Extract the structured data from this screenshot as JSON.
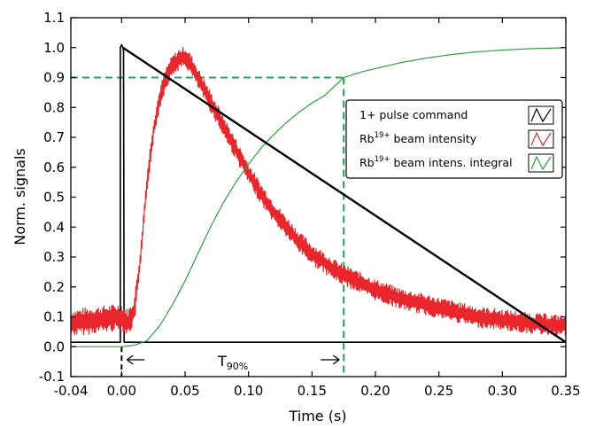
{
  "chart_data": {
    "type": "line",
    "title": "",
    "xlabel": "Time (s)",
    "ylabel": "Norm. signals",
    "xlim": [
      -0.04,
      0.35
    ],
    "ylim": [
      -0.1,
      1.1
    ],
    "x_ticks": [
      "-0.04",
      "0.00",
      "0.05",
      "0.10",
      "0.15",
      "0.20",
      "0.25",
      "0.30",
      "0.35"
    ],
    "x_tick_values": [
      -0.04,
      0.0,
      0.05,
      0.1,
      0.15,
      0.2,
      0.25,
      0.3,
      0.35
    ],
    "y_ticks": [
      "-0.1",
      "0.0",
      "0.1",
      "0.2",
      "0.3",
      "0.4",
      "0.5",
      "0.6",
      "0.7",
      "0.8",
      "0.9",
      "1.0",
      "1.1"
    ],
    "y_tick_values": [
      -0.1,
      0.0,
      0.1,
      0.2,
      0.3,
      0.4,
      0.5,
      0.6,
      0.7,
      0.8,
      0.9,
      1.0,
      1.1
    ],
    "grid": false,
    "legend_position": "right",
    "series": [
      {
        "name": "1+ pulse command",
        "color": "#000000",
        "x": [
          -0.04,
          -0.001,
          -0.001,
          0.0,
          0.001,
          0.0015,
          0.002,
          0.003,
          0.004,
          0.35
        ],
        "y": [
          0.015,
          0.015,
          1.0,
          1.01,
          1.0,
          0.99,
          0.015,
          0.015,
          0.015,
          0.015
        ]
      },
      {
        "name": "beam intensity",
        "name_prefix": "Rb",
        "name_sup": "19+",
        "name_suffix": " beam intensity",
        "color": "#e8262b",
        "x": [
          -0.04,
          -0.02,
          0.0,
          0.005,
          0.01,
          0.015,
          0.02,
          0.025,
          0.03,
          0.035,
          0.04,
          0.045,
          0.05,
          0.055,
          0.06,
          0.065,
          0.07,
          0.075,
          0.08,
          0.09,
          0.1,
          0.11,
          0.12,
          0.13,
          0.14,
          0.15,
          0.16,
          0.17,
          0.18,
          0.19,
          0.2,
          0.22,
          0.24,
          0.26,
          0.28,
          0.3,
          0.32,
          0.35
        ],
        "y": [
          0.08,
          0.09,
          0.1,
          0.08,
          0.12,
          0.3,
          0.55,
          0.72,
          0.83,
          0.9,
          0.94,
          0.96,
          0.97,
          0.94,
          0.9,
          0.86,
          0.82,
          0.78,
          0.74,
          0.66,
          0.58,
          0.51,
          0.45,
          0.4,
          0.35,
          0.31,
          0.28,
          0.25,
          0.23,
          0.21,
          0.19,
          0.16,
          0.14,
          0.12,
          0.1,
          0.09,
          0.08,
          0.07
        ]
      },
      {
        "name": "beam intens. integral",
        "name_prefix": "Rb",
        "name_sup": "19+",
        "name_suffix": " beam intens. integral",
        "color": "#2aa33b",
        "x": [
          -0.04,
          0.0,
          0.01,
          0.02,
          0.03,
          0.04,
          0.05,
          0.06,
          0.07,
          0.08,
          0.09,
          0.1,
          0.11,
          0.12,
          0.13,
          0.14,
          0.15,
          0.16,
          0.175,
          0.19,
          0.2,
          0.22,
          0.24,
          0.26,
          0.28,
          0.3,
          0.32,
          0.35
        ],
        "y": [
          0.0,
          0.0,
          0.005,
          0.02,
          0.07,
          0.14,
          0.22,
          0.31,
          0.4,
          0.48,
          0.55,
          0.61,
          0.665,
          0.71,
          0.75,
          0.785,
          0.815,
          0.84,
          0.9,
          0.92,
          0.93,
          0.95,
          0.965,
          0.977,
          0.986,
          0.992,
          0.996,
          1.0
        ]
      }
    ],
    "reference_lines": {
      "color": "#1fa854",
      "h_value": 0.9,
      "t90_value": 0.175,
      "t0_value": 0.0
    },
    "annotations": {
      "label": "T",
      "label_sub": "90%"
    }
  }
}
